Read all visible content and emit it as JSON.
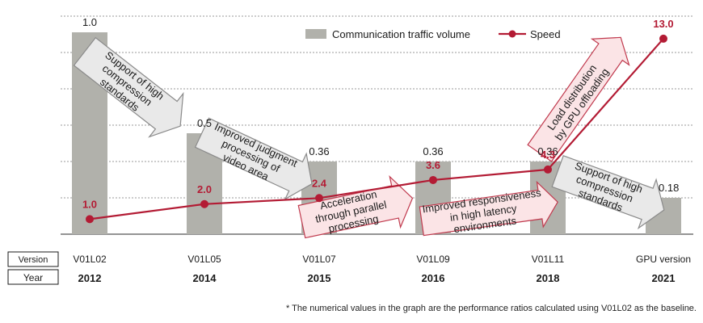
{
  "chart_data": {
    "type": "bar+line",
    "categories": [
      "2012",
      "2014",
      "2015",
      "2016",
      "2018",
      "2021"
    ],
    "versions": [
      "V01L02",
      "V01L05",
      "V01L07",
      "V01L09",
      "V01L11",
      "GPU version"
    ],
    "row_labels": {
      "version": "Version",
      "year": "Year"
    },
    "series": [
      {
        "name": "Communication traffic volume",
        "kind": "bar",
        "color": "#b1b1ab",
        "values": [
          1.0,
          0.5,
          0.36,
          0.36,
          0.36,
          0.18
        ],
        "labels": [
          "1.0",
          "0.5",
          "0.36",
          "0.36",
          "0.36",
          "0.18"
        ]
      },
      {
        "name": "Speed",
        "kind": "line",
        "color": "#b31b34",
        "values": [
          1.0,
          2.0,
          2.4,
          3.6,
          4.3,
          13.0
        ],
        "labels": [
          "1.0",
          "2.0",
          "2.4",
          "3.6",
          "4.3",
          "13.0"
        ]
      }
    ],
    "axes": {
      "bar_ylim": [
        0,
        1.08
      ],
      "line_ylim": [
        0,
        14.5
      ],
      "grid": "horizontal-dotted"
    },
    "legend": "top-right",
    "annotations": [
      {
        "text": [
          "Support of high",
          "compression",
          "standards"
        ],
        "style": "gray"
      },
      {
        "text": [
          "Improved judgment",
          "processing of",
          "video area"
        ],
        "style": "gray"
      },
      {
        "text": [
          "Acceleration",
          "through parallel",
          "processing"
        ],
        "style": "pink"
      },
      {
        "text": [
          "Improved responsiveness",
          "in high latency",
          "environments"
        ],
        "style": "pink"
      },
      {
        "text": [
          "Load distribution",
          "by GPU offloading"
        ],
        "style": "pink"
      },
      {
        "text": [
          "Support of high",
          "compression",
          "standards"
        ],
        "style": "gray"
      }
    ]
  },
  "footnote": "* The numerical values in the graph are the performance ratios calculated using V01L02 as the baseline."
}
